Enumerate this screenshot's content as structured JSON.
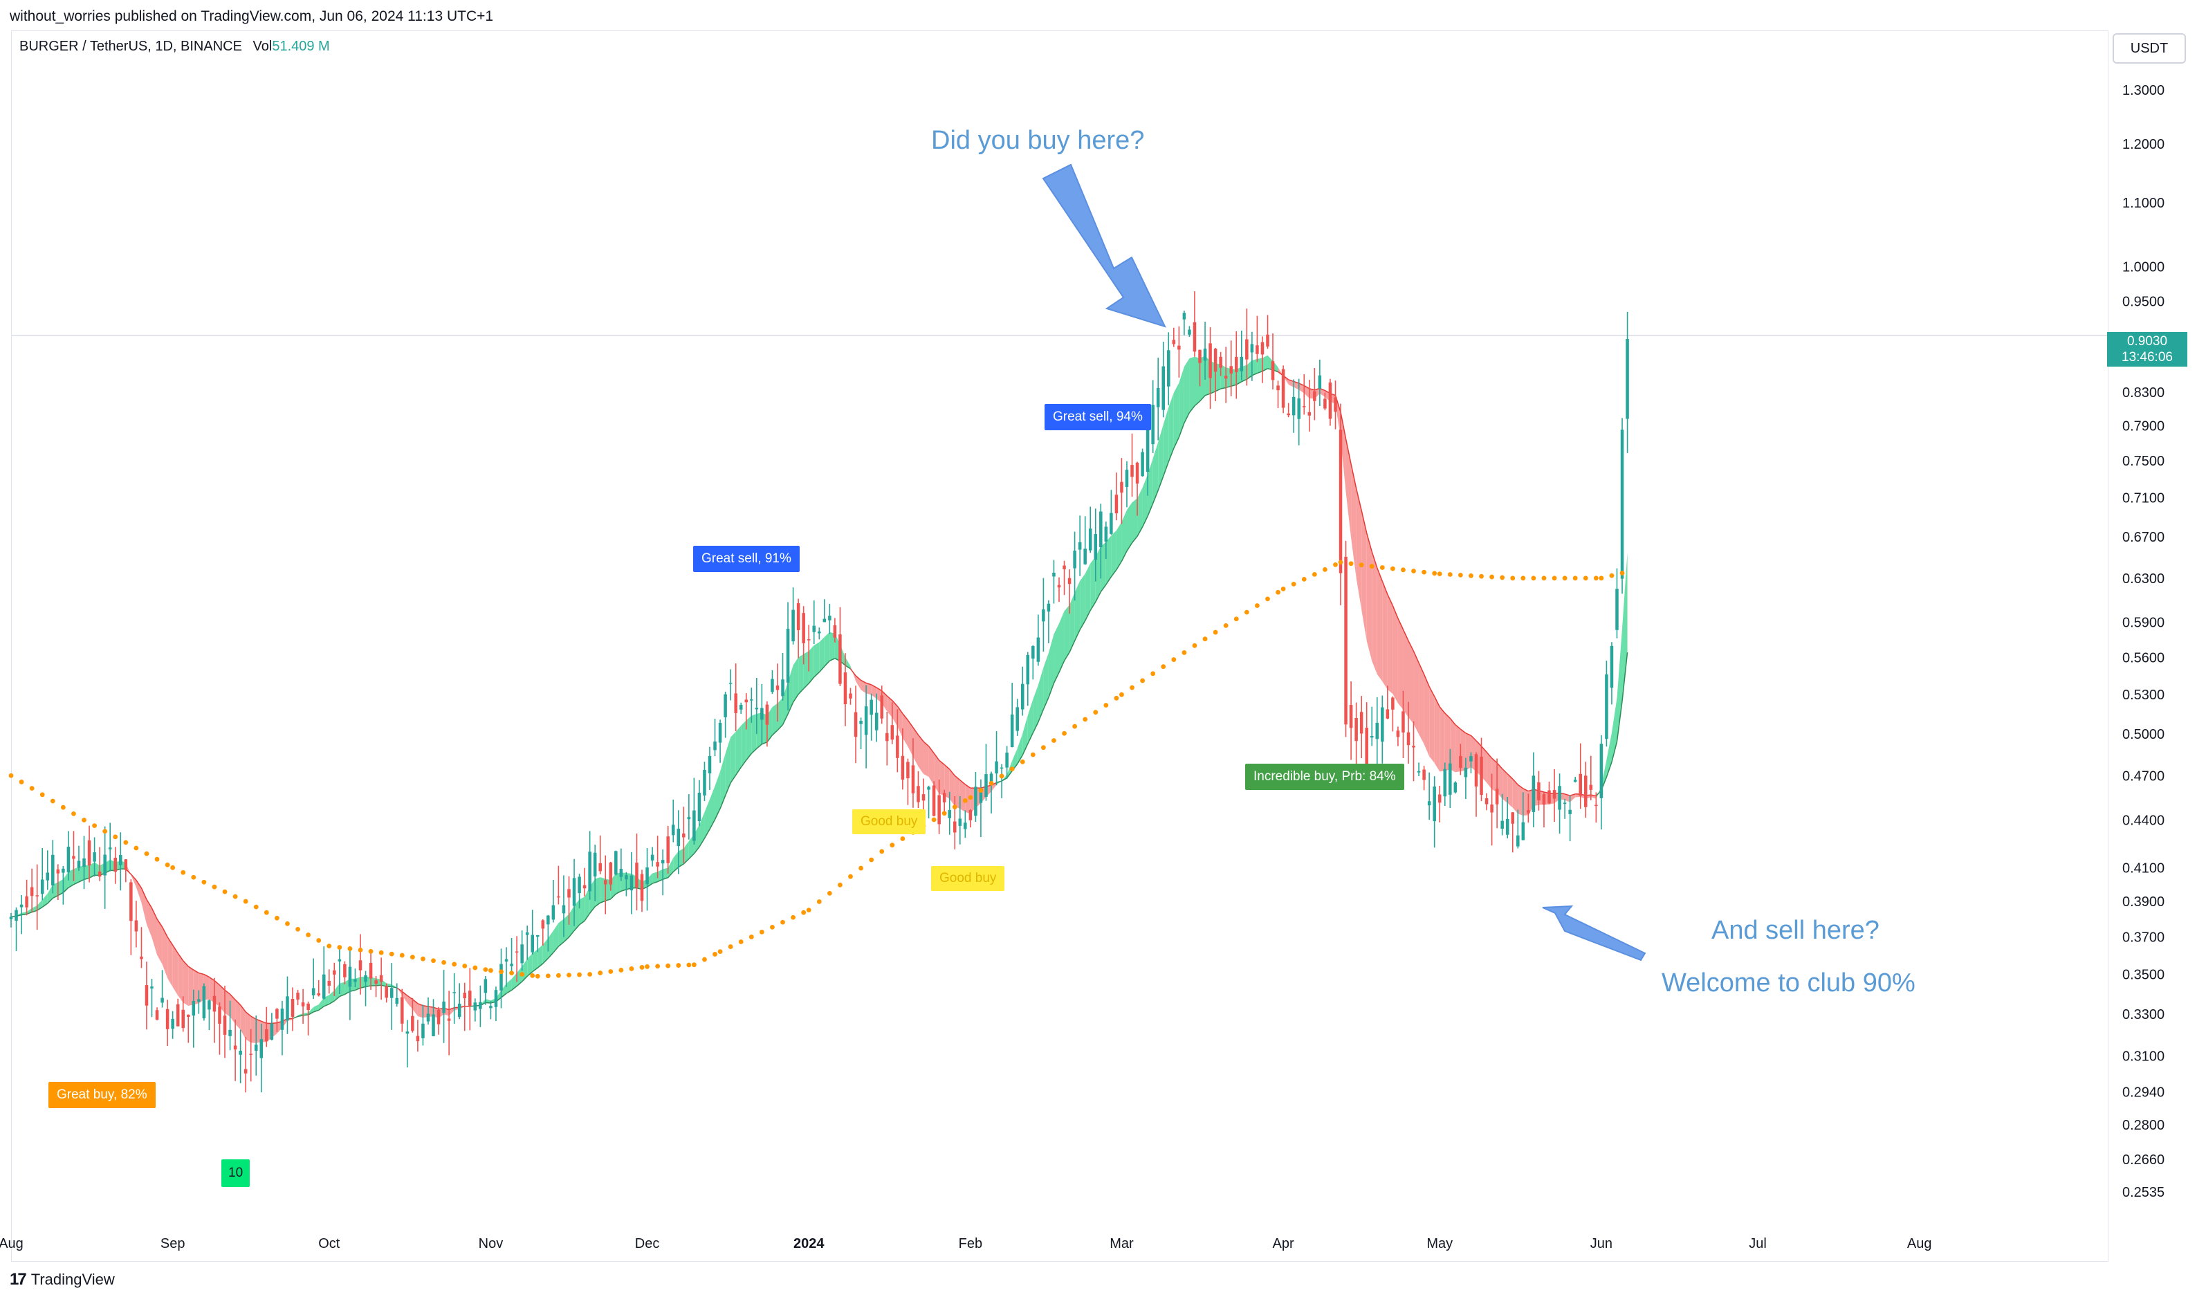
{
  "header": {
    "published": "without_worries published on TradingView.com, Jun 06, 2024 11:13 UTC+1",
    "symbol": "BURGER / TetherUS, 1D, BINANCE",
    "vol_label": "Vol",
    "vol_value": "51.409 M"
  },
  "currency": "USDT",
  "last_price": {
    "value": "0.9030",
    "countdown": "13:46:06"
  },
  "footer": {
    "logo_mark": "17",
    "brand": "TradingView"
  },
  "annotations": {
    "buy_here": "Did you buy here?",
    "sell_here": "And sell here?",
    "welcome": "Welcome to club 90%"
  },
  "signals": {
    "great_buy": "Great buy,  82%",
    "count_10": "10",
    "great_sell_91": "Great sell, 91%",
    "good_buy_1": "Good buy",
    "good_buy_2": "Good buy",
    "great_sell_94": "Great sell, 94%",
    "incredible_buy": "Incredible buy, Prb: 84%"
  },
  "colors": {
    "up": "#26a69a",
    "down": "#ef5350",
    "ribbon_up": "#69e0a9",
    "ribbon_down": "#f8a0a0",
    "ma200": "#ff9800",
    "annotation": "#5b9bd5"
  },
  "chart_data": {
    "type": "candlestick",
    "scale": "log",
    "ylim": [
      0.245,
      1.42
    ],
    "xlim": [
      "2023-08-01",
      "2024-09-06"
    ],
    "x_ticks": [
      {
        "date": "2023-08-01",
        "label": "Aug"
      },
      {
        "date": "2023-09-01",
        "label": "Sep"
      },
      {
        "date": "2023-10-01",
        "label": "Oct"
      },
      {
        "date": "2023-11-01",
        "label": "Nov"
      },
      {
        "date": "2023-12-01",
        "label": "Dec"
      },
      {
        "date": "2024-01-01",
        "label": "2024"
      },
      {
        "date": "2024-02-01",
        "label": "Feb"
      },
      {
        "date": "2024-03-01",
        "label": "Mar"
      },
      {
        "date": "2024-04-01",
        "label": "Apr"
      },
      {
        "date": "2024-05-01",
        "label": "May"
      },
      {
        "date": "2024-06-01",
        "label": "Jun"
      },
      {
        "date": "2024-07-01",
        "label": "Jul"
      },
      {
        "date": "2024-08-01",
        "label": "Aug"
      }
    ],
    "y_ticks": [
      "1.3000",
      "1.2000",
      "1.1000",
      "1.0000",
      "0.9500",
      "0.8300",
      "0.7900",
      "0.7500",
      "0.7100",
      "0.6700",
      "0.6300",
      "0.5900",
      "0.5600",
      "0.5300",
      "0.5000",
      "0.4700",
      "0.4400",
      "0.4100",
      "0.3900",
      "0.3700",
      "0.3500",
      "0.3300",
      "0.3100",
      "0.2940",
      "0.2800",
      "0.2660",
      "0.2535"
    ],
    "price_anchors": [
      [
        "2023-08-01",
        0.38
      ],
      [
        "2023-08-05",
        0.4
      ],
      [
        "2023-08-10",
        0.41
      ],
      [
        "2023-08-14",
        0.42
      ],
      [
        "2023-08-18",
        0.41
      ],
      [
        "2023-08-22",
        0.42
      ],
      [
        "2023-08-24",
        0.38
      ],
      [
        "2023-08-27",
        0.34
      ],
      [
        "2023-08-31",
        0.33
      ],
      [
        "2023-09-04",
        0.33
      ],
      [
        "2023-09-08",
        0.34
      ],
      [
        "2023-09-11",
        0.32
      ],
      [
        "2023-09-14",
        0.305
      ],
      [
        "2023-09-18",
        0.32
      ],
      [
        "2023-09-22",
        0.33
      ],
      [
        "2023-09-27",
        0.34
      ],
      [
        "2023-10-02",
        0.35
      ],
      [
        "2023-10-07",
        0.35
      ],
      [
        "2023-10-12",
        0.34
      ],
      [
        "2023-10-17",
        0.32
      ],
      [
        "2023-10-21",
        0.33
      ],
      [
        "2023-10-27",
        0.34
      ],
      [
        "2023-11-01",
        0.34
      ],
      [
        "2023-11-05",
        0.36
      ],
      [
        "2023-11-10",
        0.375
      ],
      [
        "2023-11-15",
        0.39
      ],
      [
        "2023-11-20",
        0.41
      ],
      [
        "2023-11-25",
        0.41
      ],
      [
        "2023-11-30",
        0.4
      ],
      [
        "2023-12-04",
        0.42
      ],
      [
        "2023-12-07",
        0.43
      ],
      [
        "2023-12-10",
        0.44
      ],
      [
        "2023-12-12",
        0.48
      ],
      [
        "2023-12-16",
        0.53
      ],
      [
        "2023-12-20",
        0.52
      ],
      [
        "2023-12-23",
        0.51
      ],
      [
        "2023-12-27",
        0.55
      ],
      [
        "2023-12-29",
        0.6
      ],
      [
        "2024-01-01",
        0.58
      ],
      [
        "2024-01-04",
        0.6
      ],
      [
        "2024-01-07",
        0.55
      ],
      [
        "2024-01-10",
        0.5
      ],
      [
        "2024-01-14",
        0.52
      ],
      [
        "2024-01-17",
        0.49
      ],
      [
        "2024-01-21",
        0.46
      ],
      [
        "2024-01-25",
        0.45
      ],
      [
        "2024-01-30",
        0.44
      ],
      [
        "2024-02-04",
        0.46
      ],
      [
        "2024-02-08",
        0.49
      ],
      [
        "2024-02-12",
        0.55
      ],
      [
        "2024-02-16",
        0.62
      ],
      [
        "2024-02-20",
        0.64
      ],
      [
        "2024-02-25",
        0.67
      ],
      [
        "2024-03-01",
        0.72
      ],
      [
        "2024-03-05",
        0.75
      ],
      [
        "2024-03-10",
        0.88
      ],
      [
        "2024-03-13",
        0.92
      ],
      [
        "2024-03-16",
        0.88
      ],
      [
        "2024-03-20",
        0.85
      ],
      [
        "2024-03-24",
        0.88
      ],
      [
        "2024-03-28",
        0.9
      ],
      [
        "2024-04-01",
        0.82
      ],
      [
        "2024-04-05",
        0.8
      ],
      [
        "2024-04-08",
        0.84
      ],
      [
        "2024-04-11",
        0.8
      ],
      [
        "2024-04-13",
        0.52
      ],
      [
        "2024-04-17",
        0.49
      ],
      [
        "2024-04-21",
        0.52
      ],
      [
        "2024-04-25",
        0.49
      ],
      [
        "2024-04-29",
        0.45
      ],
      [
        "2024-05-03",
        0.47
      ],
      [
        "2024-05-07",
        0.48
      ],
      [
        "2024-05-11",
        0.45
      ],
      [
        "2024-05-15",
        0.43
      ],
      [
        "2024-05-19",
        0.46
      ],
      [
        "2024-05-23",
        0.45
      ],
      [
        "2024-05-27",
        0.46
      ],
      [
        "2024-05-31",
        0.46
      ],
      [
        "2024-06-02",
        0.54
      ],
      [
        "2024-06-04",
        0.62
      ],
      [
        "2024-06-05",
        0.8
      ],
      [
        "2024-06-06",
        0.903
      ]
    ],
    "ma200": [
      [
        "2023-08-01",
        0.47
      ],
      [
        "2023-08-15",
        0.44
      ],
      [
        "2023-09-01",
        0.41
      ],
      [
        "2023-09-15",
        0.39
      ],
      [
        "2023-10-01",
        0.365
      ],
      [
        "2023-10-15",
        0.36
      ],
      [
        "2023-11-01",
        0.352
      ],
      [
        "2023-11-10",
        0.349
      ],
      [
        "2023-11-20",
        0.35
      ],
      [
        "2023-12-01",
        0.354
      ],
      [
        "2023-12-10",
        0.355
      ],
      [
        "2023-12-15",
        0.362
      ],
      [
        "2024-01-01",
        0.385
      ],
      [
        "2024-01-15",
        0.42
      ],
      [
        "2024-02-01",
        0.455
      ],
      [
        "2024-02-15",
        0.49
      ],
      [
        "2024-03-01",
        0.53
      ],
      [
        "2024-03-15",
        0.57
      ],
      [
        "2024-04-01",
        0.62
      ],
      [
        "2024-04-12",
        0.645
      ],
      [
        "2024-04-20",
        0.64
      ],
      [
        "2024-05-01",
        0.634
      ],
      [
        "2024-05-15",
        0.63
      ],
      [
        "2024-06-01",
        0.63
      ],
      [
        "2024-06-06",
        0.636
      ]
    ]
  }
}
